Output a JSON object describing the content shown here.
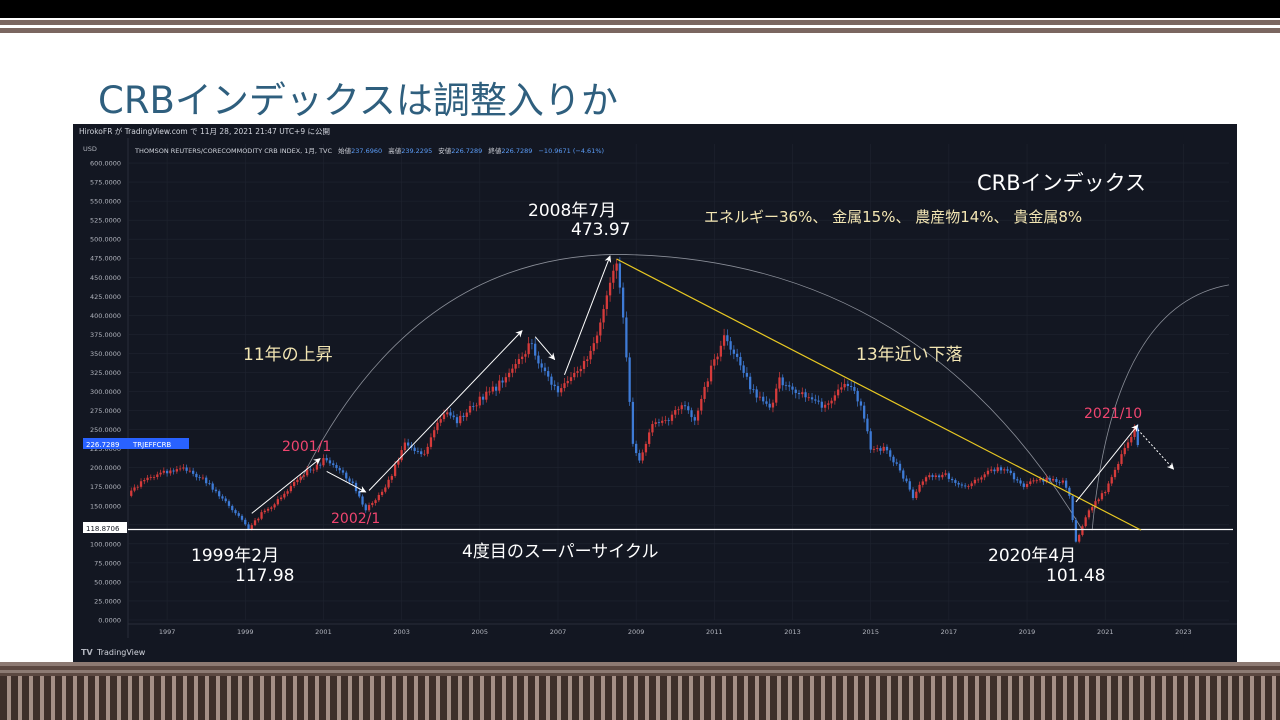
{
  "slide": {
    "title": "CRBインデックスは調整入りか"
  },
  "header": {
    "publisher": "HirokoFR が TradingView.com で 11月 28, 2021 21:47 UTC+9 に公開",
    "currency": "USD",
    "symbol_desc": "THOMSON REUTERS/CORECOMMODITY CRB INDEX, 1月, TVC",
    "open_label": "始値",
    "open": "237.6960",
    "high_label": "高値",
    "high": "239.2295",
    "low_label": "安値",
    "low": "226.7289",
    "close_label": "終値",
    "close": "226.7289",
    "change": "−10.9671 (−4.61%)"
  },
  "footer": {
    "brand": "TradingView"
  },
  "price_tag": {
    "value": "226.7289",
    "symbol": "TRJEFFCRB"
  },
  "low_tag": {
    "value": "118.8706"
  },
  "colors": {
    "up": "#d63b3b",
    "down": "#3e7bd6",
    "background": "#131722",
    "trend": "#e8c822",
    "pink": "#f0456f",
    "cream": "#f3e6b3"
  },
  "chart_data": {
    "type": "candlestick",
    "x_range": [
      "1996-01",
      "2024-03"
    ],
    "ylim": [
      0,
      625
    ],
    "y_ticks": [
      0,
      25,
      50,
      75,
      100,
      125,
      150,
      175,
      200,
      225,
      250,
      275,
      300,
      325,
      350,
      375,
      400,
      425,
      450,
      475,
      500,
      525,
      550,
      575,
      600
    ],
    "y_tick_labels": [
      "0.0000",
      "25.0000",
      "50.0000",
      "75.0000",
      "100.0000",
      "125.0000",
      "150.0000",
      "175.0000",
      "200.0000",
      "225.0000",
      "250.0000",
      "275.0000",
      "300.0000",
      "325.0000",
      "350.0000",
      "375.0000",
      "400.0000",
      "425.0000",
      "450.0000",
      "475.0000",
      "500.0000",
      "525.0000",
      "550.0000",
      "575.0000",
      "600.0000"
    ],
    "x_ticks": [
      "1997",
      "1999",
      "2001",
      "2003",
      "2005",
      "2007",
      "2009",
      "2011",
      "2013",
      "2015",
      "2017",
      "2019",
      "2021",
      "2023"
    ],
    "anchors": [
      [
        "1996-01",
        163
      ],
      [
        "1996-06",
        185
      ],
      [
        "1997-01",
        195
      ],
      [
        "1997-06",
        198
      ],
      [
        "1997-12",
        185
      ],
      [
        "1998-06",
        160
      ],
      [
        "1998-12",
        132
      ],
      [
        "1999-02",
        118
      ],
      [
        "1999-06",
        140
      ],
      [
        "1999-12",
        160
      ],
      [
        "2000-06",
        190
      ],
      [
        "2000-12",
        205
      ],
      [
        "2001-01",
        210
      ],
      [
        "2001-06",
        198
      ],
      [
        "2001-10",
        178
      ],
      [
        "2002-01",
        152
      ],
      [
        "2002-02",
        146
      ],
      [
        "2002-08",
        172
      ],
      [
        "2003-02",
        230
      ],
      [
        "2003-08",
        215
      ],
      [
        "2003-12",
        260
      ],
      [
        "2004-03",
        270
      ],
      [
        "2004-06",
        260
      ],
      [
        "2005-01",
        290
      ],
      [
        "2005-06",
        305
      ],
      [
        "2005-12",
        335
      ],
      [
        "2006-05",
        365
      ],
      [
        "2006-06",
        345
      ],
      [
        "2006-10",
        320
      ],
      [
        "2007-01",
        300
      ],
      [
        "2007-06",
        320
      ],
      [
        "2007-12",
        360
      ],
      [
        "2008-04",
        430
      ],
      [
        "2008-07",
        473.97
      ],
      [
        "2008-09",
        400
      ],
      [
        "2008-12",
        230
      ],
      [
        "2009-02",
        208
      ],
      [
        "2009-06",
        258
      ],
      [
        "2009-10",
        260
      ],
      [
        "2010-03",
        285
      ],
      [
        "2010-07",
        265
      ],
      [
        "2010-12",
        330
      ],
      [
        "2011-04",
        370
      ],
      [
        "2011-08",
        345
      ],
      [
        "2011-12",
        305
      ],
      [
        "2012-06",
        275
      ],
      [
        "2012-09",
        315
      ],
      [
        "2013-03",
        300
      ],
      [
        "2013-10",
        280
      ],
      [
        "2014-06",
        310
      ],
      [
        "2014-10",
        285
      ],
      [
        "2015-01",
        225
      ],
      [
        "2015-06",
        225
      ],
      [
        "2015-12",
        180
      ],
      [
        "2016-02",
        160
      ],
      [
        "2016-06",
        190
      ],
      [
        "2016-12",
        190
      ],
      [
        "2017-06",
        175
      ],
      [
        "2018-01",
        195
      ],
      [
        "2018-06",
        200
      ],
      [
        "2018-12",
        175
      ],
      [
        "2019-04",
        185
      ],
      [
        "2019-12",
        182
      ],
      [
        "2020-02",
        165
      ],
      [
        "2020-04",
        101.48
      ],
      [
        "2020-08",
        145
      ],
      [
        "2021-01",
        170
      ],
      [
        "2021-06",
        215
      ],
      [
        "2021-10",
        250
      ],
      [
        "2021-11",
        226.73
      ]
    ],
    "reference_lines": [
      {
        "label": "118.8706",
        "y": 118.87
      }
    ],
    "trendline": {
      "from": [
        "2008-07",
        473.97
      ],
      "to": [
        "2021-12",
        118
      ]
    },
    "arcs": [
      {
        "from": [
          "2000-06",
          183
        ],
        "top": [
          "2008-07",
          480
        ],
        "to": [
          "2020-06",
          118
        ]
      },
      {
        "from": [
          "2020-09",
          118
        ],
        "to": [
          "2024-03",
          440
        ]
      }
    ],
    "annotations": {
      "legend_title": "CRBインデックス",
      "composition": "エネルギー36%、 金属15%、 農産物14%、 貴金属8%",
      "rise": "11年の上昇",
      "fall": "13年近い下落",
      "cycle": "4度目のスーパーサイクル",
      "peak_date": "2008年7月",
      "peak_value": "473.97",
      "low1_date": "1999年2月",
      "low1_value": "117.98",
      "low2_date": "2020年4月",
      "low2_value": "101.48",
      "p2001": "2001/1",
      "p2002": "2002/1",
      "p2021": "2021/10"
    }
  }
}
